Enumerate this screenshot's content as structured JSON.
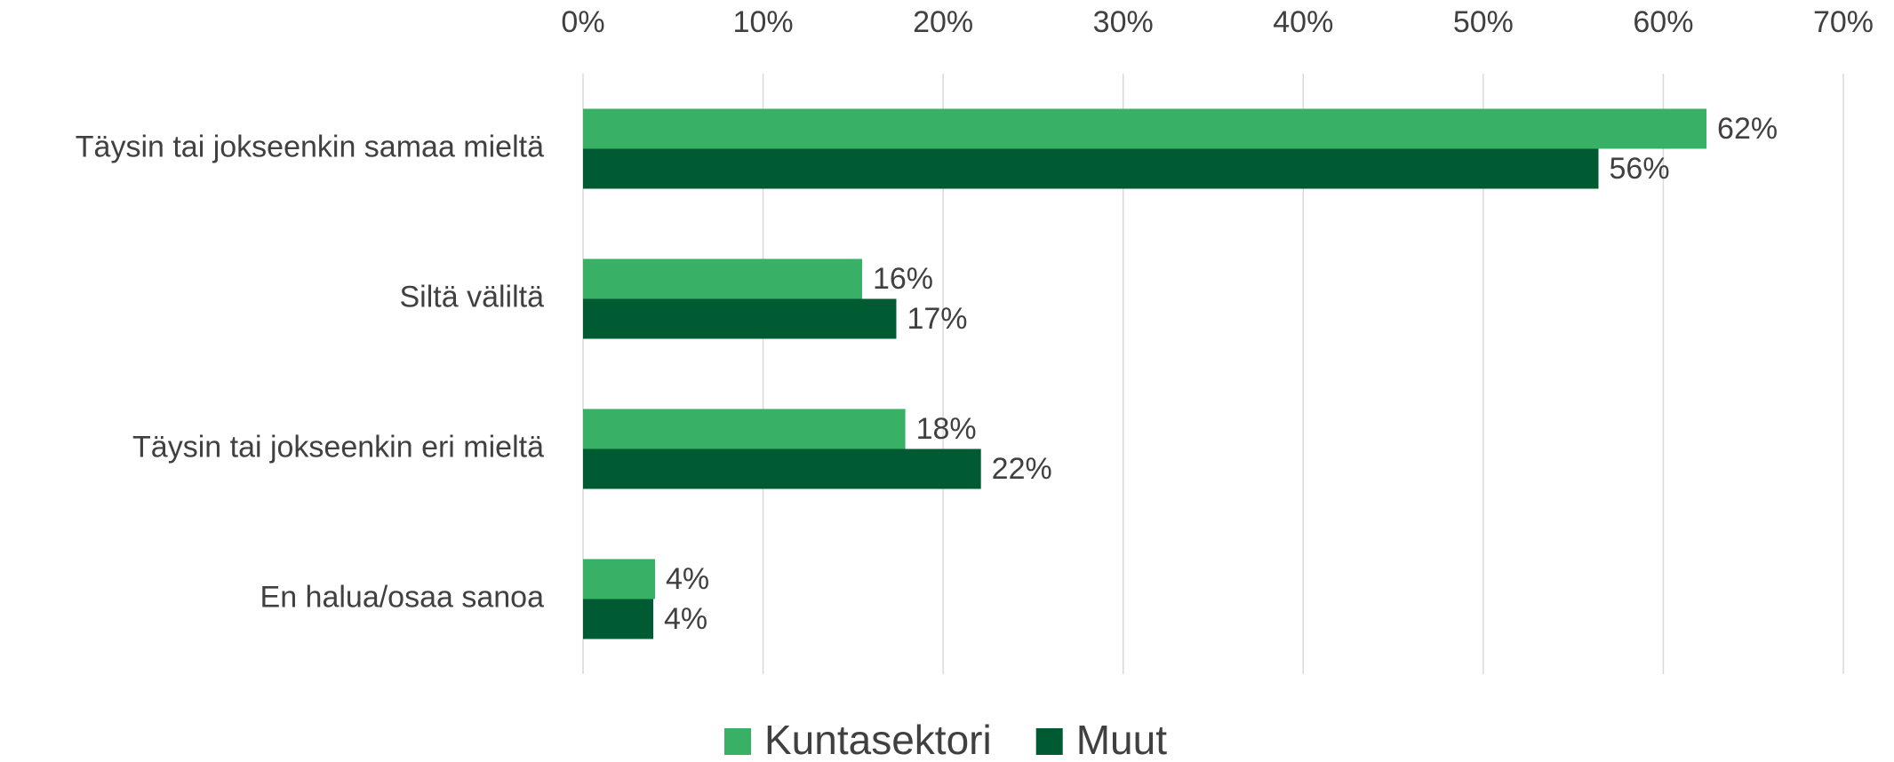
{
  "chart_data": {
    "type": "barh",
    "categories": [
      "Täysin tai jokseenkin samaa mieltä",
      "Siltä väliltä",
      "Täysin tai jokseenkin eri mieltä",
      "En halua/osaa sanoa"
    ],
    "series": [
      {
        "name": "Kuntasektori",
        "color": "#38b066",
        "values": [
          62.4,
          15.5,
          17.9,
          4.0
        ],
        "value_labels": [
          "62%",
          "16%",
          "18%",
          "4%"
        ]
      },
      {
        "name": "Muut",
        "color": "#005a32",
        "values": [
          56.4,
          17.4,
          22.1,
          3.9
        ],
        "value_labels": [
          "56%",
          "17%",
          "22%",
          "4%"
        ]
      }
    ],
    "xlim": [
      0,
      70
    ],
    "xticks": [
      {
        "value": 0,
        "label": "0%"
      },
      {
        "value": 10,
        "label": "10%"
      },
      {
        "value": 20,
        "label": "20%"
      },
      {
        "value": 30,
        "label": "30%"
      },
      {
        "value": 40,
        "label": "40%"
      },
      {
        "value": 50,
        "label": "50%"
      },
      {
        "value": 60,
        "label": "60%"
      },
      {
        "value": 70,
        "label": "70%"
      }
    ],
    "grid": true,
    "legend": "bottom"
  }
}
